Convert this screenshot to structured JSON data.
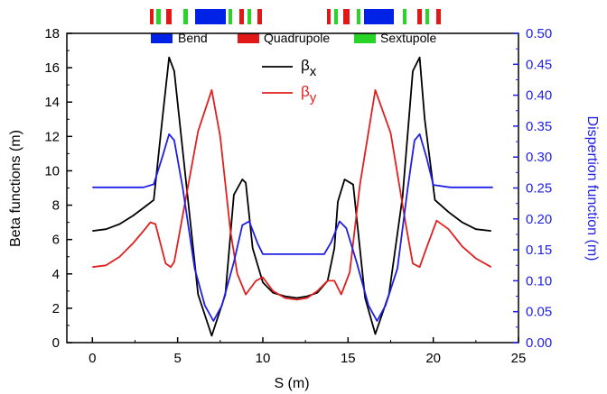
{
  "chart_data": {
    "type": "line",
    "xlabel": "S (m)",
    "ylabel": "Beta functions (m)",
    "y2label": "Dispertion function (m)",
    "xlim": [
      -1.5,
      25
    ],
    "ylim": [
      0,
      18
    ],
    "y2lim": [
      0,
      0.5
    ],
    "xticks": [
      "0",
      "5",
      "10",
      "15",
      "20",
      "25"
    ],
    "yticks": [
      "0",
      "2",
      "4",
      "6",
      "8",
      "10",
      "12",
      "14",
      "16",
      "18"
    ],
    "y2ticks": [
      "0.00",
      "0.05",
      "0.10",
      "0.15",
      "0.20",
      "0.25",
      "0.30",
      "0.35",
      "0.40",
      "0.45",
      "0.50"
    ],
    "grid": false,
    "legend_position": "top-left",
    "series": [
      {
        "name": "βx",
        "name_base": "β",
        "name_sub": "x",
        "axis": "left",
        "color": "#000000",
        "x": [
          0,
          0.8,
          1.6,
          2.4,
          3.2,
          3.6,
          4.1,
          4.5,
          4.8,
          5.5,
          6.2,
          7.0,
          7.8,
          8.3,
          8.8,
          9.0,
          9.4,
          10.0,
          10.6,
          11.3,
          12.0,
          12.6,
          13.2,
          13.8,
          14.2,
          14.4,
          14.8,
          15.3,
          16.0,
          16.6,
          17.4,
          18.2,
          18.8,
          19.2,
          19.5,
          20.1,
          20.9,
          21.7,
          22.5,
          23.4
        ],
        "y": [
          6.5,
          6.6,
          6.9,
          7.4,
          8.0,
          8.3,
          13.0,
          16.6,
          15.8,
          9.3,
          2.8,
          0.4,
          2.8,
          8.6,
          9.5,
          9.3,
          5.5,
          3.5,
          2.9,
          2.7,
          2.6,
          2.7,
          2.9,
          3.6,
          5.5,
          8.2,
          9.5,
          9.2,
          2.6,
          0.5,
          2.8,
          8.5,
          15.8,
          16.6,
          13.0,
          8.3,
          7.6,
          7.0,
          6.6,
          6.5
        ]
      },
      {
        "name": "βy",
        "name_base": "β",
        "name_sub": "y",
        "axis": "left",
        "color": "#e0201f",
        "x": [
          0,
          0.8,
          1.6,
          2.4,
          3.0,
          3.4,
          3.7,
          4.3,
          4.6,
          4.8,
          5.5,
          6.2,
          7.0,
          7.5,
          8.1,
          8.5,
          9.0,
          9.6,
          10.0,
          10.6,
          11.3,
          12.0,
          12.6,
          13.2,
          13.8,
          14.2,
          14.6,
          15.1,
          15.7,
          16.6,
          17.5,
          18.4,
          18.8,
          19.2,
          19.6,
          20.2,
          20.9,
          21.7,
          22.5,
          23.4
        ],
        "y": [
          4.4,
          4.5,
          5.0,
          5.8,
          6.5,
          7.0,
          6.9,
          4.6,
          4.4,
          4.7,
          8.5,
          12.3,
          14.7,
          12.0,
          6.5,
          4.0,
          2.8,
          3.6,
          3.8,
          3.0,
          2.6,
          2.5,
          2.6,
          3.0,
          3.6,
          3.6,
          2.8,
          4.1,
          9.2,
          14.7,
          12.2,
          6.8,
          4.6,
          4.4,
          5.5,
          7.1,
          6.6,
          5.6,
          4.9,
          4.4
        ]
      },
      {
        "name": "",
        "axis": "right",
        "color": "#1f1fe6",
        "x": [
          0,
          1.0,
          2.0,
          3.0,
          3.6,
          4.1,
          4.5,
          4.8,
          5.3,
          6.0,
          6.6,
          7.1,
          7.6,
          8.3,
          8.8,
          9.2,
          9.7,
          10.0,
          11.0,
          12.0,
          13.0,
          13.6,
          14.0,
          14.5,
          14.9,
          15.5,
          16.2,
          16.7,
          17.2,
          17.9,
          18.5,
          18.9,
          19.2,
          19.6,
          20.0,
          21.0,
          22.0,
          23.5
        ],
        "y": [
          0.251,
          0.251,
          0.251,
          0.251,
          0.256,
          0.3,
          0.337,
          0.327,
          0.25,
          0.12,
          0.06,
          0.035,
          0.06,
          0.13,
          0.19,
          0.196,
          0.16,
          0.143,
          0.143,
          0.143,
          0.143,
          0.143,
          0.162,
          0.196,
          0.185,
          0.13,
          0.06,
          0.035,
          0.06,
          0.12,
          0.25,
          0.327,
          0.337,
          0.3,
          0.255,
          0.251,
          0.251,
          0.251
        ]
      }
    ]
  },
  "lattice_bar": {
    "legend": [
      {
        "label": "Bend",
        "color": "#0022e6"
      },
      {
        "label": "Quadrupole",
        "color": "#e01818"
      },
      {
        "label": "Sextupole",
        "color": "#28d428"
      }
    ]
  }
}
